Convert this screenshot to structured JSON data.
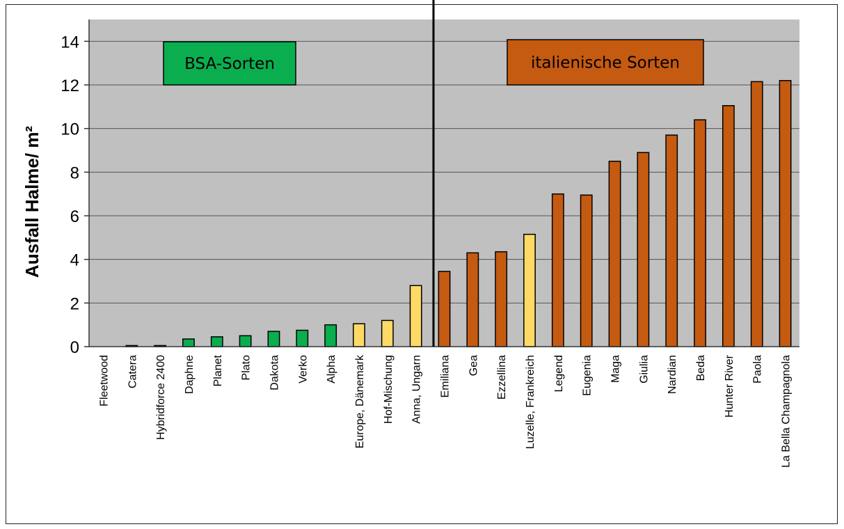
{
  "chart_data": {
    "type": "bar",
    "title": "",
    "xlabel": "",
    "ylabel": "Ausfall Halme/ m²",
    "ylim": [
      0,
      15
    ],
    "yticks": [
      0,
      2,
      4,
      6,
      8,
      10,
      12,
      14
    ],
    "grid": true,
    "categories": [
      "Fleetwood",
      "Catera",
      "Hybridforce 2400",
      "Daphne",
      "Planet",
      "Plato",
      "Dakota",
      "Verko",
      "Alpha",
      "Europe, Dänemark",
      "Hof-Mischung",
      "Anna, Ungarn",
      "Emiliana",
      "Gea",
      "Ezzellina",
      "Luzelle, Frankreich",
      "Legend",
      "Eugenia",
      "Maga",
      "Giulia",
      "Nardian",
      "Beda",
      "Hunter River",
      "Paola",
      "La Bella Champagnola"
    ],
    "values": [
      0,
      0.05,
      0.05,
      0.35,
      0.45,
      0.5,
      0.7,
      0.75,
      1.0,
      1.05,
      1.2,
      2.8,
      3.45,
      4.3,
      4.35,
      5.15,
      7.0,
      6.95,
      8.5,
      8.9,
      9.7,
      10.4,
      11.05,
      12.15,
      12.2
    ],
    "bar_groups": [
      "green",
      "green",
      "green",
      "green",
      "green",
      "green",
      "green",
      "green",
      "green",
      "yellow",
      "yellow",
      "yellow",
      "orange",
      "orange",
      "orange",
      "yellow",
      "orange",
      "orange",
      "orange",
      "orange",
      "orange",
      "orange",
      "orange",
      "orange",
      "orange"
    ],
    "colors": {
      "green": "#0aae4f",
      "yellow": "#ffd966",
      "orange": "#c55a11",
      "plot_background": "#c0c0c0",
      "gridline": "#555555"
    },
    "legend_boxes": [
      {
        "label": "BSA-Sorten",
        "color": "#0aae4f"
      },
      {
        "label": "italienische Sorten",
        "color": "#c55a11"
      }
    ]
  }
}
